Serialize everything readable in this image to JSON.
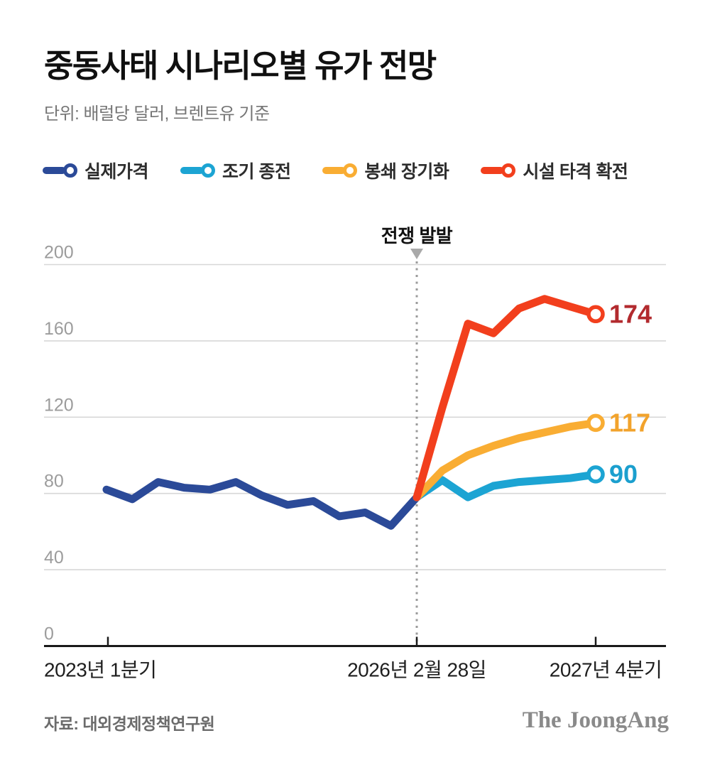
{
  "header": {
    "title": "중동사태 시나리오별 유가 전망",
    "subtitle": "단위: 배럴당 달러, 브렌트유 기준"
  },
  "legend": {
    "items": [
      {
        "key": "actual-price",
        "label": "실제가격",
        "color": "#2b4a98"
      },
      {
        "key": "early-ceasefire",
        "label": "조기 종전",
        "color": "#1ca4d3"
      },
      {
        "key": "prolonged-blockade",
        "label": "봉쇄 장기화",
        "color": "#f9ad33"
      },
      {
        "key": "facility-strike-escalation",
        "label": "시설 타격 확전",
        "color": "#f23f1d"
      }
    ]
  },
  "chart_data": {
    "type": "line",
    "title": "중동사태 시나리오별 유가 전망",
    "unit": "배럴당 달러, 브렌트유 기준",
    "ylim": [
      0,
      200
    ],
    "yticks": [
      0,
      40,
      80,
      120,
      160,
      200
    ],
    "grid": true,
    "legend_position": "top",
    "x_axis_labels": [
      {
        "text": "2023년 1분기",
        "align": "start"
      },
      {
        "text": "2026년 2월 28일",
        "align": "middle"
      },
      {
        "text": "2027년 4분기",
        "align": "middle"
      }
    ],
    "annotation": {
      "label": "전쟁 발발",
      "at_x_label": "2026년 2월 28일"
    },
    "series": [
      {
        "key": "actual-price",
        "name": "실제가격",
        "color": "#2b4a98",
        "segment": "history",
        "x_quarters": [
          "2023Q1",
          "2023Q2",
          "2023Q3",
          "2023Q4",
          "2024Q1",
          "2024Q2",
          "2024Q3",
          "2024Q4",
          "2025Q1",
          "2025Q2",
          "2025Q3",
          "2025Q4",
          "2026-02-28"
        ],
        "values": [
          82,
          77,
          86,
          83,
          82,
          86,
          79,
          74,
          76,
          68,
          70,
          63,
          78
        ]
      },
      {
        "key": "early-ceasefire",
        "name": "조기 종전",
        "color": "#1ca4d3",
        "segment": "forecast",
        "x_quarters": [
          "2026-02-28",
          "2026Q2",
          "2026Q3",
          "2026Q4",
          "2027Q1",
          "2027Q2",
          "2027Q3",
          "2027Q4"
        ],
        "values": [
          78,
          87,
          78,
          84,
          86,
          87,
          88,
          90
        ],
        "end_label": "90",
        "end_label_color": "#1b9fce"
      },
      {
        "key": "prolonged-blockade",
        "name": "봉쇄 장기화",
        "color": "#f9ad33",
        "segment": "forecast",
        "x_quarters": [
          "2026-02-28",
          "2026Q2",
          "2026Q3",
          "2026Q4",
          "2027Q1",
          "2027Q2",
          "2027Q3",
          "2027Q4"
        ],
        "values": [
          78,
          92,
          100,
          105,
          109,
          112,
          115,
          117
        ],
        "end_label": "117",
        "end_label_color": "#f2a32c"
      },
      {
        "key": "facility-strike-escalation",
        "name": "시설 타격 확전",
        "color": "#f23f1d",
        "segment": "forecast",
        "x_quarters": [
          "2026-02-28",
          "2026Q2",
          "2026Q3",
          "2026Q4",
          "2027Q1",
          "2027Q2",
          "2027Q3",
          "2027Q4"
        ],
        "values": [
          78,
          125,
          169,
          164,
          177,
          182,
          178,
          174
        ],
        "end_label": "174",
        "end_label_color": "#b22a2e"
      }
    ],
    "colors": {
      "gridline": "#d7d7d7",
      "axis": "#1a1a1a",
      "tick_label": "#9c9c9c",
      "x_label": "#1f1f1f",
      "annotation": "#111111",
      "war_marker": "#a9a9a9",
      "dashed_line": "#9b9b9b"
    }
  },
  "footer": {
    "source": "자료: 대외경제정책연구원",
    "logo": "The JoongAng"
  }
}
